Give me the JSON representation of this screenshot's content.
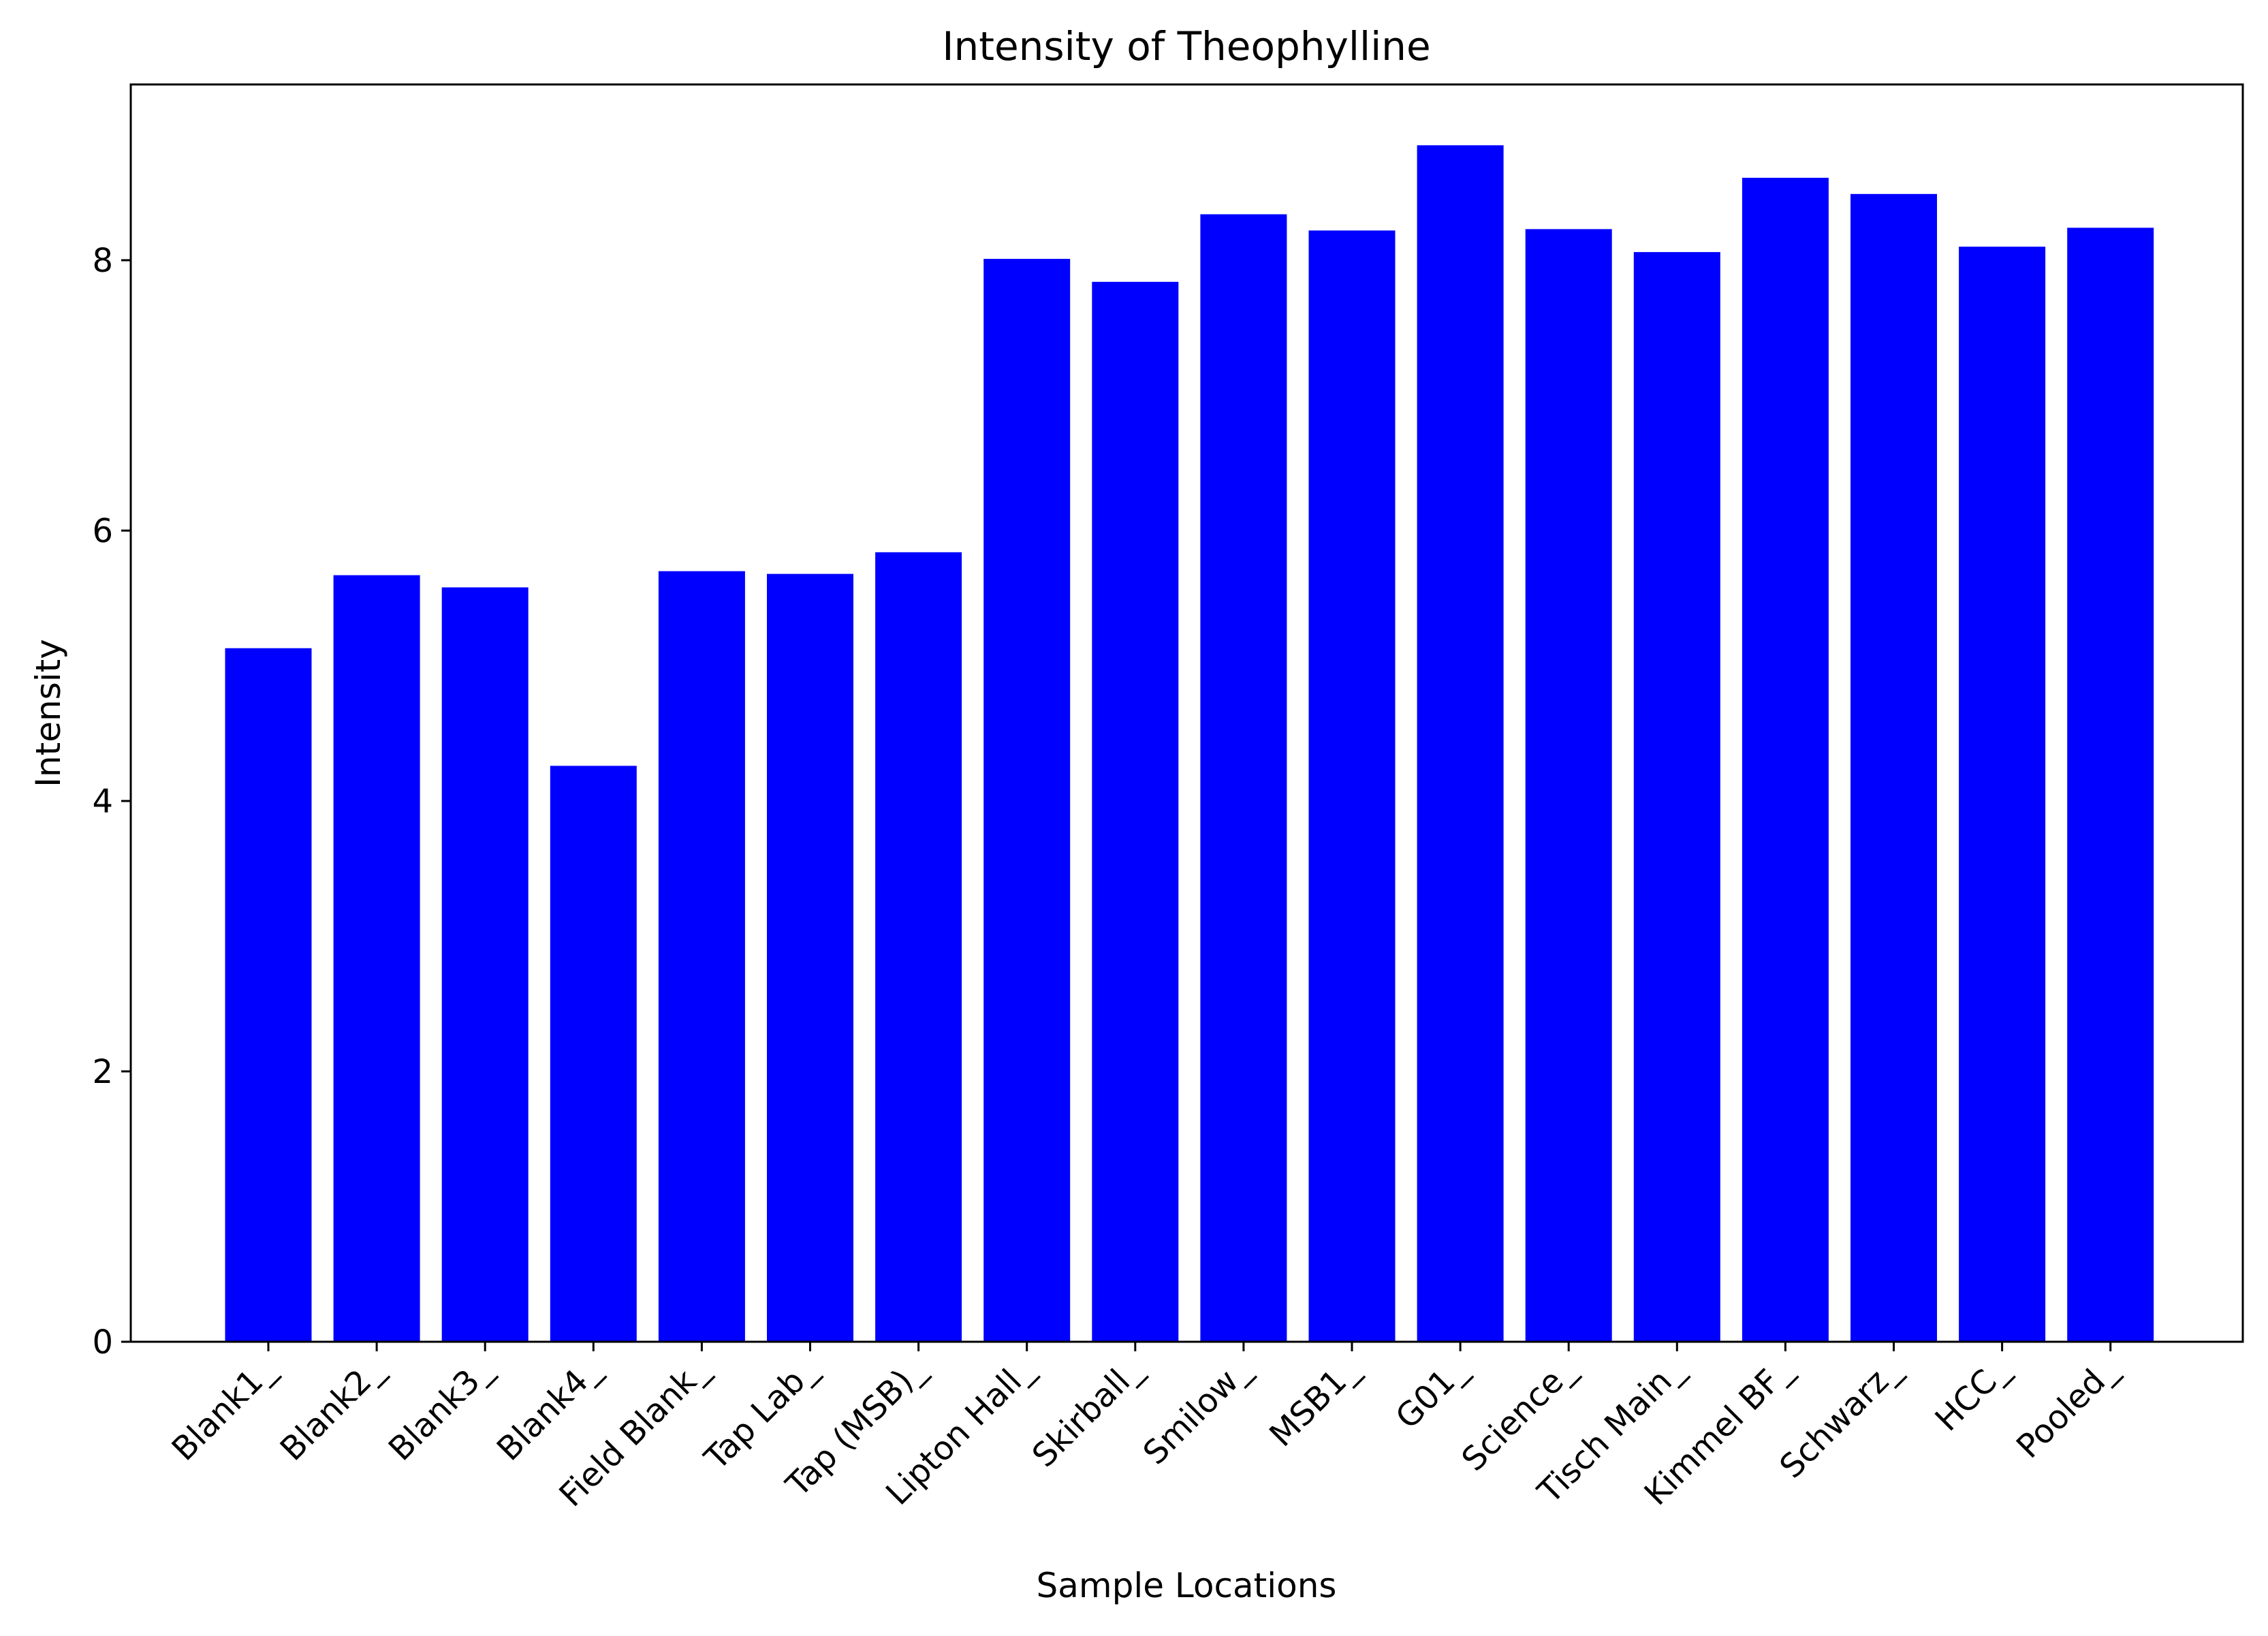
{
  "chart_data": {
    "type": "bar",
    "title": "Intensity of Theophylline",
    "xlabel": "Sample Locations",
    "ylabel": "Intensity",
    "ylim": [
      0,
      9.3
    ],
    "yticks": [
      0,
      2,
      4,
      6,
      8
    ],
    "grid": false,
    "legend": "none",
    "bar_color": "#0000ff",
    "categories": [
      "Blank1_",
      "Blank2_",
      "Blank3_",
      "Blank4_",
      "Field Blank_",
      "Tap Lab_",
      "Tap (MSB)_",
      "Lipton Hall_",
      "Skirball_",
      "Smilow_",
      "MSB1_",
      "G01_",
      "Science_",
      "Tisch Main_",
      "Kimmel BF_",
      "Schwarz_",
      "HCC_",
      "Pooled_"
    ],
    "values": [
      5.13,
      5.67,
      5.58,
      4.26,
      5.7,
      5.68,
      5.84,
      8.01,
      7.84,
      8.34,
      8.22,
      8.85,
      8.23,
      8.06,
      8.61,
      8.49,
      8.1,
      8.24
    ]
  }
}
